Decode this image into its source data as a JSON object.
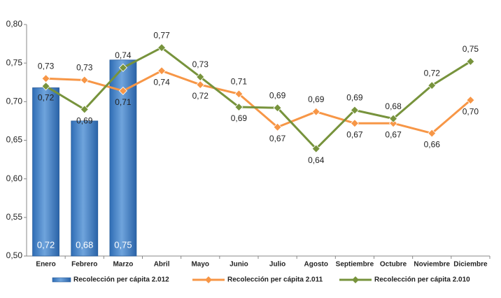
{
  "chart_data": {
    "type": "bar_line",
    "categories": [
      "Enero",
      "Febrero",
      "Marzo",
      "Abril",
      "Mayo",
      "Junio",
      "Julio",
      "Agosto",
      "Septiembre",
      "Octubre",
      "Noviembre",
      "Diciembre"
    ],
    "series": [
      {
        "name": "Recolección per cápita 2.012",
        "type": "bar",
        "color": "#4a86c8",
        "values": [
          0.718,
          0.675,
          0.754,
          null,
          null,
          null,
          null,
          null,
          null,
          null,
          null,
          null
        ],
        "value_labels": [
          "0,72",
          "0,68",
          "0,75",
          null,
          null,
          null,
          null,
          null,
          null,
          null,
          null,
          null
        ]
      },
      {
        "name": "Recolección per cápita 2.011",
        "type": "line",
        "color": "#f79646",
        "values": [
          0.73,
          0.728,
          0.714,
          0.74,
          0.722,
          0.71,
          0.667,
          0.687,
          0.672,
          0.672,
          0.659,
          0.702
        ],
        "value_labels": [
          "0,73",
          "0,73",
          "0,71",
          "0,74",
          "0,72",
          "0,71",
          "0,67",
          "0,69",
          "0,67",
          "0,67",
          "0,66",
          "0,70"
        ]
      },
      {
        "name": "Recolección per cápita 2.010",
        "type": "line",
        "color": "#77933c",
        "values": [
          0.72,
          0.69,
          0.744,
          0.77,
          0.732,
          0.693,
          0.692,
          0.639,
          0.689,
          0.678,
          0.721,
          0.752
        ],
        "value_labels": [
          "0,72",
          "0,69",
          "0,74",
          "0,77",
          "0,73",
          "0,69",
          "0,69",
          "0,64",
          "0,69",
          "0,68",
          "0,72",
          "0,75"
        ]
      }
    ],
    "ylim": [
      0.5,
      0.8
    ],
    "yticks": [
      {
        "value": 0.5,
        "label": "0,50"
      },
      {
        "value": 0.55,
        "label": "0,55"
      },
      {
        "value": 0.6,
        "label": "0,60"
      },
      {
        "value": 0.65,
        "label": "0,65"
      },
      {
        "value": 0.7,
        "label": "0,70"
      },
      {
        "value": 0.75,
        "label": "0,75"
      },
      {
        "value": 0.8,
        "label": "0,80"
      }
    ],
    "grid": false,
    "legend": "bottom"
  }
}
